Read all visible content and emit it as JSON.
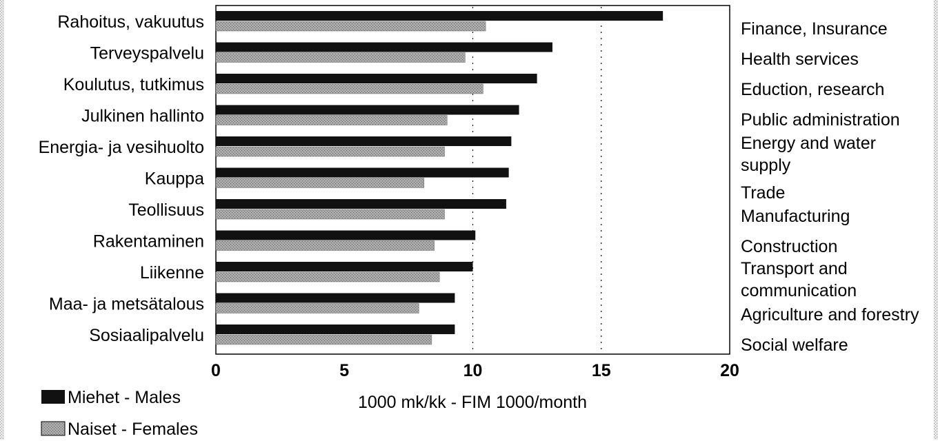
{
  "chart_data": {
    "type": "bar",
    "orientation": "horizontal",
    "categories": [
      "Rahoitus, vakuutus",
      "Terveyspalvelu",
      "Koulutus, tutkimus",
      "Julkinen hallinto",
      "Energia- ja vesihuolto",
      "Kauppa",
      "Teollisuus",
      "Rakentaminen",
      "Liikenne",
      "Maa- ja metsätalous",
      "Sosiaalipalvelu"
    ],
    "categories_en": [
      "Finance, Insurance",
      "Health services",
      "Eduction, research",
      "Public administration",
      "Energy and water supply",
      "Trade",
      "Manufacturing",
      "Construction",
      "Transport and communication",
      "Agriculture and forestry",
      "Social welfare"
    ],
    "series": [
      {
        "name": "Miehet - Males",
        "color": "#111111",
        "values": [
          17.4,
          13.1,
          12.5,
          11.8,
          11.5,
          11.4,
          11.3,
          10.1,
          10.0,
          9.3,
          9.3
        ]
      },
      {
        "name": "Naiset - Females",
        "color": "#a9a9a9",
        "values": [
          10.5,
          9.7,
          10.4,
          9.0,
          8.9,
          8.1,
          8.9,
          8.5,
          8.7,
          7.9,
          8.4
        ]
      }
    ],
    "xlabel": "1000 mk/kk - FIM 1000/month",
    "xlim": [
      0,
      20
    ],
    "xticks": [
      0,
      5,
      10,
      15,
      20
    ],
    "grid": "vertical dotted at 10 and 15",
    "legend_placement": "bottom-left"
  }
}
